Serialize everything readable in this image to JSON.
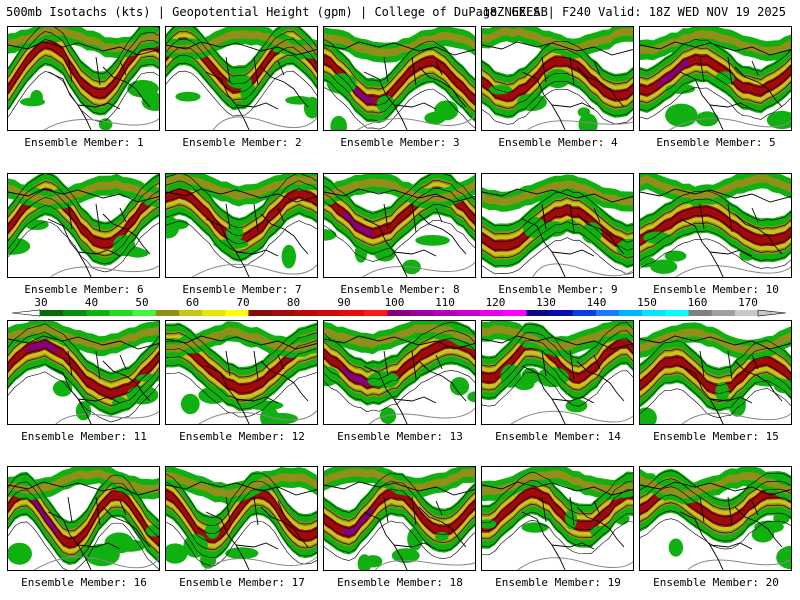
{
  "header": {
    "title_left": "500mb Isotachs (kts) | Geopotential Height (gpm) | College of DuPage NEXLAB",
    "title_right": "18Z GEFS | F240 Valid: 18Z WED NOV 19 2025"
  },
  "members": [
    {
      "label": "Ensemble Member: 1"
    },
    {
      "label": "Ensemble Member: 2"
    },
    {
      "label": "Ensemble Member: 3"
    },
    {
      "label": "Ensemble Member: 4"
    },
    {
      "label": "Ensemble Member: 5"
    },
    {
      "label": "Ensemble Member: 6"
    },
    {
      "label": "Ensemble Member: 7"
    },
    {
      "label": "Ensemble Member: 8"
    },
    {
      "label": "Ensemble Member: 9"
    },
    {
      "label": "Ensemble Member: 10"
    },
    {
      "label": "Ensemble Member: 11"
    },
    {
      "label": "Ensemble Member: 12"
    },
    {
      "label": "Ensemble Member: 13"
    },
    {
      "label": "Ensemble Member: 14"
    },
    {
      "label": "Ensemble Member: 15"
    },
    {
      "label": "Ensemble Member: 16"
    },
    {
      "label": "Ensemble Member: 17"
    },
    {
      "label": "Ensemble Member: 18"
    },
    {
      "label": "Ensemble Member: 19"
    },
    {
      "label": "Ensemble Member: 20"
    }
  ],
  "colorbar": {
    "labels": [
      "30",
      "40",
      "50",
      "60",
      "70",
      "80",
      "90",
      "100",
      "110",
      "120",
      "130",
      "140",
      "150",
      "160",
      "170"
    ],
    "colors": [
      "#0a6b0a",
      "#0c8c0c",
      "#10b010",
      "#1fdc1f",
      "#45f545",
      "#8f8f1a",
      "#c6c61a",
      "#e6e600",
      "#ffff00",
      "#8b0a0a",
      "#a00a0a",
      "#b80a0a",
      "#d00a0a",
      "#e60a0a",
      "#ff1a1a",
      "#800080",
      "#990099",
      "#b300b3",
      "#cc00cc",
      "#e600e6",
      "#ff00ff",
      "#0a0a80",
      "#0a0ab3",
      "#0a3ce6",
      "#1e78ff",
      "#00b4ff",
      "#00e6ff",
      "#00ffff",
      "#808080",
      "#a0a0a0",
      "#c8c8c8"
    ]
  }
}
